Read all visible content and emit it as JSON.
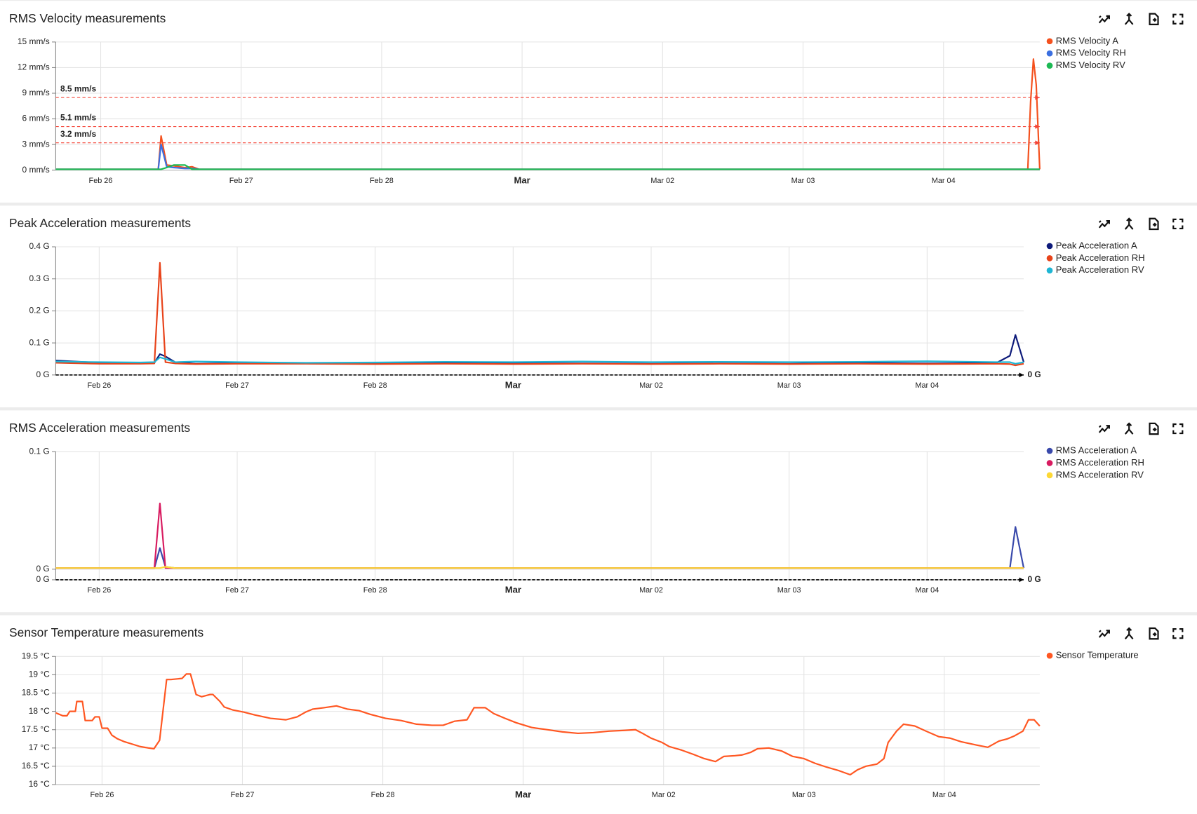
{
  "chart_data": [
    {
      "type": "line",
      "title": "RMS Velocity measurements",
      "grid": true,
      "threshold_label": "left",
      "x": [
        -0.32,
        0.35,
        0.41,
        0.43,
        0.47,
        0.52,
        0.6,
        0.65,
        0.7,
        1.5,
        3,
        4.5,
        6.6,
        6.62,
        6.64,
        6.66,
        6.685
      ],
      "xlim": [
        -0.32,
        6.685
      ],
      "xticks": [
        {
          "value": 0,
          "label": "Feb 26"
        },
        {
          "value": 1,
          "label": "Feb 27"
        },
        {
          "value": 2,
          "label": "Feb 28"
        },
        {
          "value": 3,
          "label": "Mar"
        },
        {
          "value": 4,
          "label": "Mar 02"
        },
        {
          "value": 5,
          "label": "Mar 03"
        },
        {
          "value": 6,
          "label": "Mar 04"
        }
      ],
      "ylim": [
        0,
        15
      ],
      "yticks": [
        {
          "value": 0,
          "label": "0 mm/s"
        },
        {
          "value": 3,
          "label": "3 mm/s"
        },
        {
          "value": 6,
          "label": "6 mm/s"
        },
        {
          "value": 9,
          "label": "9 mm/s"
        },
        {
          "value": 12,
          "label": "12 mm/s"
        },
        {
          "value": 15,
          "label": "15 mm/s"
        }
      ],
      "thresholds": [
        {
          "value": 8.5,
          "label": "8.5 mm/s",
          "color": "#f44336"
        },
        {
          "value": 5.1,
          "label": "5.1 mm/s",
          "color": "#f44336"
        },
        {
          "value": 3.2,
          "label": "3.2 mm/s",
          "color": "#f44336"
        }
      ],
      "series": [
        {
          "name": "RMS Velocity A",
          "color": "#f4511e",
          "values": [
            0.1,
            0.1,
            0.1,
            4.0,
            0.6,
            0.5,
            0.3,
            0.4,
            0.1,
            0.1,
            0.1,
            0.1,
            0.1,
            8,
            13,
            10,
            0.1
          ]
        },
        {
          "name": "RMS Velocity RH",
          "color": "#3b6fe0",
          "values": [
            0.1,
            0.1,
            0.1,
            3.0,
            0.4,
            0.3,
            0.2,
            0.2,
            0.1,
            0.1,
            0.1,
            0.1,
            0.1,
            0.1,
            0.1,
            0.1,
            0.1
          ]
        },
        {
          "name": "RMS Velocity RV",
          "color": "#1db954",
          "values": [
            0.1,
            0.1,
            0.1,
            0.1,
            0.3,
            0.6,
            0.6,
            0.1,
            0.1,
            0.1,
            0.1,
            0.1,
            0.1,
            0.1,
            0.1,
            0.1,
            0.1
          ]
        }
      ]
    },
    {
      "type": "line",
      "title": "Peak Acceleration measurements",
      "grid": true,
      "threshold_label": "right",
      "x": [
        -0.315,
        0,
        0.3,
        0.4,
        0.44,
        0.48,
        0.55,
        0.7,
        1,
        1.5,
        2,
        2.5,
        3,
        3.5,
        4,
        4.5,
        5,
        5.5,
        6,
        6.5,
        6.6,
        6.64,
        6.7
      ],
      "xlim": [
        -0.315,
        6.7
      ],
      "xticks": [
        {
          "value": 0,
          "label": "Feb 26"
        },
        {
          "value": 1,
          "label": "Feb 27"
        },
        {
          "value": 2,
          "label": "Feb 28"
        },
        {
          "value": 3,
          "label": "Mar"
        },
        {
          "value": 4,
          "label": "Mar 02"
        },
        {
          "value": 5,
          "label": "Mar 03"
        },
        {
          "value": 6,
          "label": "Mar 04"
        }
      ],
      "ylim": [
        0,
        0.4
      ],
      "yticks": [
        {
          "value": 0,
          "label": "0 G"
        },
        {
          "value": 0.1,
          "label": "0.1 G"
        },
        {
          "value": 0.2,
          "label": "0.2 G"
        },
        {
          "value": 0.3,
          "label": "0.3 G"
        },
        {
          "value": 0.4,
          "label": "0.4 G"
        }
      ],
      "thresholds": [
        {
          "value": 0,
          "label": "0 G",
          "color": "#000000"
        }
      ],
      "series": [
        {
          "name": "Peak Acceleration A",
          "color": "#0d1a7a",
          "values": [
            0.045,
            0.038,
            0.036,
            0.038,
            0.065,
            0.058,
            0.04,
            0.035,
            0.037,
            0.036,
            0.035,
            0.037,
            0.036,
            0.036,
            0.035,
            0.036,
            0.035,
            0.037,
            0.036,
            0.037,
            0.06,
            0.125,
            0.04
          ]
        },
        {
          "name": "Peak Acceleration RH",
          "color": "#e8431a",
          "values": [
            0.038,
            0.035,
            0.035,
            0.036,
            0.35,
            0.04,
            0.036,
            0.034,
            0.035,
            0.035,
            0.034,
            0.035,
            0.034,
            0.035,
            0.034,
            0.035,
            0.034,
            0.035,
            0.034,
            0.035,
            0.034,
            0.03,
            0.035
          ]
        },
        {
          "name": "Peak Acceleration RV",
          "color": "#1fb6d4",
          "values": [
            0.042,
            0.04,
            0.039,
            0.04,
            0.055,
            0.05,
            0.04,
            0.042,
            0.04,
            0.038,
            0.039,
            0.041,
            0.04,
            0.042,
            0.04,
            0.041,
            0.04,
            0.041,
            0.043,
            0.04,
            0.04,
            0.035,
            0.04
          ]
        }
      ]
    },
    {
      "type": "line",
      "title": "RMS Acceleration measurements",
      "grid": true,
      "threshold_label": "right",
      "x": [
        -0.315,
        0.4,
        0.44,
        0.48,
        0.55,
        6.6,
        6.64,
        6.7
      ],
      "xlim": [
        -0.315,
        6.7
      ],
      "xticks": [
        {
          "value": 0,
          "label": "Feb 26"
        },
        {
          "value": 1,
          "label": "Feb 27"
        },
        {
          "value": 2,
          "label": "Feb 28"
        },
        {
          "value": 3,
          "label": "Mar"
        },
        {
          "value": 4,
          "label": "Mar 02"
        },
        {
          "value": 5,
          "label": "Mar 03"
        },
        {
          "value": 6,
          "label": "Mar 04"
        }
      ],
      "ylim": [
        -0.009,
        0.1
      ],
      "yticks": [
        {
          "value": -0.009,
          "label": "0 G"
        },
        {
          "value": 0,
          "label": "0 G"
        },
        {
          "value": 0.1,
          "label": "0.1 G"
        }
      ],
      "thresholds": [
        {
          "value": -0.009,
          "label": "0 G",
          "color": "#000000"
        }
      ],
      "series": [
        {
          "name": "RMS Acceleration A",
          "color": "#3949ab",
          "values": [
            0.001,
            0.001,
            0.018,
            0.002,
            0.001,
            0.001,
            0.036,
            0.001
          ]
        },
        {
          "name": "RMS Acceleration RH",
          "color": "#d81b60",
          "values": [
            0.001,
            0.001,
            0.056,
            0.001,
            0.001,
            0.001,
            0.001,
            0.001
          ]
        },
        {
          "name": "RMS Acceleration RV",
          "color": "#fdd835",
          "values": [
            0.001,
            0.001,
            0.001,
            0.002,
            0.001,
            0.001,
            0.001,
            0.001
          ]
        }
      ]
    },
    {
      "type": "line",
      "title": "Sensor Temperature measurements",
      "grid": true,
      "x": [
        -0.33,
        -0.28,
        -0.25,
        -0.23,
        -0.19,
        -0.18,
        -0.14,
        -0.12,
        -0.07,
        -0.05,
        -0.02,
        0,
        0.04,
        0.07,
        0.11,
        0.16,
        0.22,
        0.27,
        0.33,
        0.37,
        0.41,
        0.46,
        0.49,
        0.57,
        0.6,
        0.63,
        0.67,
        0.71,
        0.77,
        0.79,
        0.84,
        0.87,
        0.93,
        1.01,
        1.09,
        1.2,
        1.31,
        1.39,
        1.45,
        1.5,
        1.58,
        1.67,
        1.75,
        1.83,
        1.91,
        2.02,
        2.13,
        2.24,
        2.35,
        2.43,
        2.51,
        2.6,
        2.65,
        2.73,
        2.79,
        2.87,
        2.95,
        3.06,
        3.17,
        3.28,
        3.39,
        3.5,
        3.61,
        3.72,
        3.8,
        3.85,
        3.91,
        3.99,
        4.04,
        4.13,
        4.21,
        4.29,
        4.37,
        4.43,
        4.51,
        4.56,
        4.62,
        4.67,
        4.75,
        4.84,
        4.92,
        5.0,
        5.08,
        5.16,
        5.25,
        5.33,
        5.38,
        5.44,
        5.52,
        5.57,
        5.6,
        5.66,
        5.71,
        5.79,
        5.87,
        5.96,
        6.04,
        6.12,
        6.23,
        6.31,
        6.39,
        6.45,
        6.5,
        6.56,
        6.6,
        6.64,
        6.68
      ],
      "xlim": [
        -0.33,
        6.68
      ],
      "xticks": [
        {
          "value": 0,
          "label": "Feb 26"
        },
        {
          "value": 1,
          "label": "Feb 27"
        },
        {
          "value": 2,
          "label": "Feb 28"
        },
        {
          "value": 3,
          "label": "Mar"
        },
        {
          "value": 4,
          "label": "Mar 02"
        },
        {
          "value": 5,
          "label": "Mar 03"
        },
        {
          "value": 6,
          "label": "Mar 04"
        }
      ],
      "ylim": [
        16,
        19.5
      ],
      "yticks": [
        {
          "value": 16,
          "label": "16 °C"
        },
        {
          "value": 16.5,
          "label": "16.5 °C"
        },
        {
          "value": 17,
          "label": "17 °C"
        },
        {
          "value": 17.5,
          "label": "17.5 °C"
        },
        {
          "value": 18,
          "label": "18 °C"
        },
        {
          "value": 18.5,
          "label": "18.5 °C"
        },
        {
          "value": 19,
          "label": "19 °C"
        },
        {
          "value": 19.5,
          "label": "19.5 °C"
        }
      ],
      "series": [
        {
          "name": "Sensor Temperature",
          "color": "#ff5722",
          "values": [
            17.96,
            17.88,
            17.88,
            18.0,
            18.0,
            18.27,
            18.27,
            17.75,
            17.75,
            17.85,
            17.85,
            17.54,
            17.54,
            17.35,
            17.25,
            17.17,
            17.1,
            17.04,
            17.0,
            16.98,
            17.21,
            18.87,
            18.87,
            18.9,
            19.02,
            19.02,
            18.46,
            18.4,
            18.46,
            18.46,
            18.27,
            18.12,
            18.04,
            17.98,
            17.9,
            17.81,
            17.77,
            17.85,
            17.98,
            18.06,
            18.1,
            18.15,
            18.06,
            18.02,
            17.92,
            17.81,
            17.75,
            17.65,
            17.62,
            17.62,
            17.73,
            17.77,
            18.1,
            18.1,
            17.94,
            17.81,
            17.69,
            17.56,
            17.5,
            17.44,
            17.4,
            17.42,
            17.46,
            17.48,
            17.5,
            17.4,
            17.27,
            17.15,
            17.04,
            16.94,
            16.83,
            16.71,
            16.63,
            16.77,
            16.79,
            16.81,
            16.88,
            16.98,
            17.0,
            16.92,
            16.77,
            16.71,
            16.58,
            16.48,
            16.38,
            16.27,
            16.4,
            16.5,
            16.56,
            16.71,
            17.15,
            17.46,
            17.65,
            17.6,
            17.46,
            17.31,
            17.27,
            17.17,
            17.08,
            17.02,
            17.19,
            17.25,
            17.33,
            17.46,
            17.77,
            17.77,
            17.6
          ]
        }
      ]
    }
  ]
}
